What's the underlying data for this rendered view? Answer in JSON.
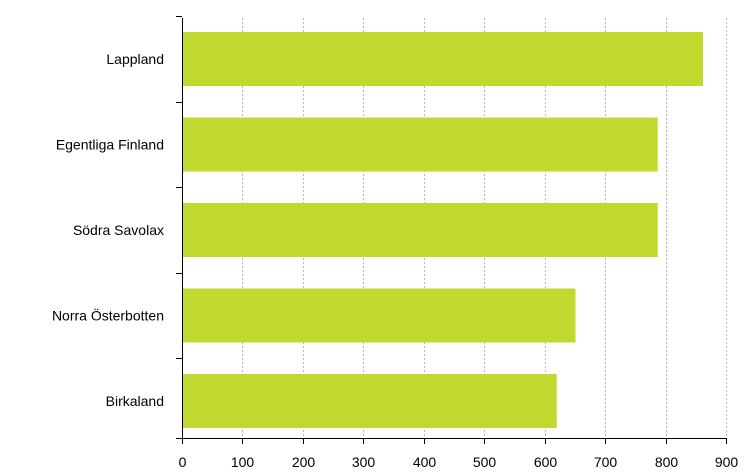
{
  "chart_data": {
    "type": "bar",
    "orientation": "horizontal",
    "categories": [
      "Lappland",
      "Egentliga Finland",
      "Södra Savolax",
      "Norra Österbotten",
      "Birkaland"
    ],
    "values": [
      862,
      787,
      787,
      651,
      620
    ],
    "xlim": [
      0,
      900
    ],
    "x_ticks": [
      0,
      100,
      200,
      300,
      400,
      500,
      600,
      700,
      800,
      900
    ],
    "grid": "vertical dashed",
    "legend": "none",
    "title": "",
    "xlabel": "",
    "ylabel": "",
    "colors": {
      "bar": "#c2d82e",
      "grid": "#b8b8b8",
      "axis": "#000000"
    }
  }
}
